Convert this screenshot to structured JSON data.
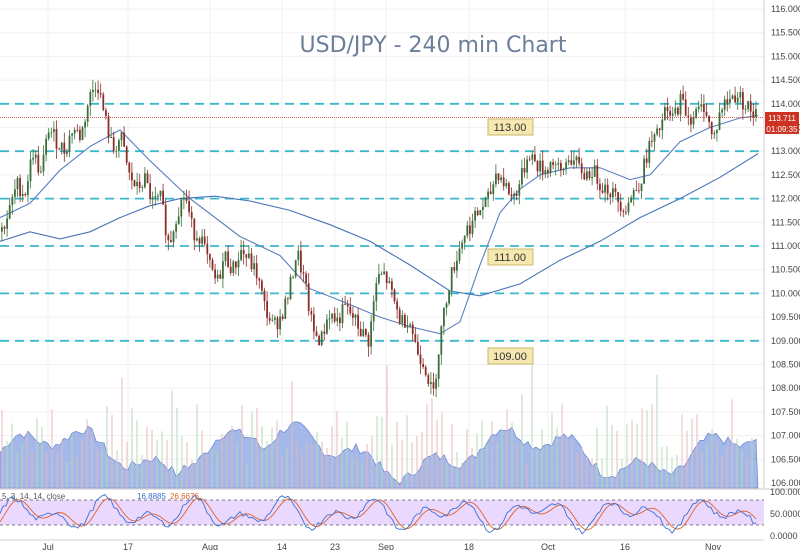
{
  "chart_data": {
    "type": "candlestick",
    "title": "USD/JPY - 240 min Chart",
    "y_axis": {
      "range": [
        105.9,
        116.1
      ],
      "ticks": [
        "116.000",
        "115.500",
        "115.000",
        "114.500",
        "114.000",
        "113.500",
        "113.000",
        "112.500",
        "112.000",
        "111.500",
        "111.000",
        "110.500",
        "110.000",
        "109.500",
        "109.000",
        "108.500",
        "108.000",
        "107.500",
        "107.000",
        "106.500",
        "106.000"
      ]
    },
    "x_axis": {
      "tick_labels": [
        "Jul",
        "17",
        "Aug",
        "14",
        "23",
        "Sep",
        "18",
        "Oct",
        "16",
        "Nov"
      ]
    },
    "price_path": [
      [
        0,
        111.3
      ],
      [
        8,
        111.7
      ],
      [
        16,
        112.3
      ],
      [
        24,
        112.1
      ],
      [
        32,
        113.0
      ],
      [
        40,
        112.5
      ],
      [
        48,
        113.5
      ],
      [
        56,
        113.2
      ],
      [
        64,
        113.0
      ],
      [
        72,
        113.5
      ],
      [
        80,
        113.3
      ],
      [
        88,
        114.1
      ],
      [
        96,
        114.5
      ],
      [
        104,
        113.7
      ],
      [
        112,
        113.0
      ],
      [
        120,
        113.3
      ],
      [
        128,
        112.5
      ],
      [
        136,
        112.2
      ],
      [
        144,
        112.4
      ],
      [
        152,
        111.9
      ],
      [
        160,
        112.0
      ],
      [
        168,
        111.0
      ],
      [
        176,
        111.7
      ],
      [
        184,
        112.1
      ],
      [
        192,
        111.3
      ],
      [
        200,
        111.2
      ],
      [
        208,
        110.6
      ],
      [
        216,
        110.2
      ],
      [
        224,
        110.8
      ],
      [
        232,
        110.5
      ],
      [
        240,
        110.9
      ],
      [
        248,
        110.7
      ],
      [
        256,
        110.4
      ],
      [
        264,
        109.7
      ],
      [
        272,
        109.3
      ],
      [
        280,
        109.5
      ],
      [
        288,
        110.0
      ],
      [
        296,
        110.9
      ],
      [
        304,
        110.2
      ],
      [
        312,
        109.2
      ],
      [
        320,
        109.0
      ],
      [
        328,
        109.6
      ],
      [
        336,
        109.4
      ],
      [
        344,
        109.7
      ],
      [
        352,
        109.5
      ],
      [
        360,
        109.2
      ],
      [
        368,
        109.0
      ],
      [
        376,
        110.3
      ],
      [
        384,
        110.4
      ],
      [
        392,
        109.9
      ],
      [
        400,
        109.4
      ],
      [
        408,
        109.5
      ],
      [
        416,
        108.8
      ],
      [
        424,
        108.5
      ],
      [
        432,
        107.8
      ],
      [
        440,
        109.2
      ],
      [
        448,
        110.2
      ],
      [
        456,
        110.8
      ],
      [
        464,
        111.3
      ],
      [
        472,
        111.5
      ],
      [
        480,
        111.8
      ],
      [
        488,
        112.0
      ],
      [
        496,
        112.6
      ],
      [
        504,
        112.3
      ],
      [
        512,
        112.0
      ],
      [
        520,
        112.4
      ],
      [
        528,
        113.0
      ],
      [
        536,
        112.7
      ],
      [
        544,
        112.6
      ],
      [
        552,
        112.8
      ],
      [
        560,
        112.5
      ],
      [
        568,
        112.9
      ],
      [
        576,
        112.7
      ],
      [
        584,
        112.5
      ],
      [
        592,
        112.6
      ],
      [
        600,
        112.3
      ],
      [
        608,
        112.2
      ],
      [
        616,
        112.0
      ],
      [
        624,
        111.8
      ],
      [
        632,
        112.1
      ],
      [
        640,
        112.4
      ],
      [
        648,
        113.1
      ],
      [
        656,
        113.3
      ],
      [
        664,
        113.8
      ],
      [
        672,
        113.7
      ],
      [
        680,
        114.1
      ],
      [
        688,
        113.7
      ],
      [
        696,
        113.8
      ],
      [
        704,
        114.0
      ],
      [
        712,
        113.2
      ],
      [
        720,
        113.9
      ],
      [
        728,
        114.1
      ],
      [
        736,
        114.2
      ],
      [
        744,
        114.0
      ],
      [
        752,
        113.8
      ],
      [
        758,
        113.711
      ]
    ],
    "moving_averages": [
      {
        "color": "#5b7ec4",
        "path": [
          [
            0,
            111.6
          ],
          [
            30,
            111.9
          ],
          [
            60,
            112.6
          ],
          [
            90,
            113.1
          ],
          [
            120,
            113.45
          ],
          [
            150,
            112.8
          ],
          [
            190,
            112.0
          ],
          [
            240,
            111.2
          ],
          [
            280,
            110.8
          ],
          [
            310,
            110.1
          ],
          [
            340,
            109.85
          ],
          [
            380,
            109.5
          ],
          [
            410,
            109.3
          ],
          [
            440,
            109.15
          ],
          [
            460,
            109.4
          ],
          [
            480,
            110.6
          ],
          [
            500,
            111.7
          ],
          [
            520,
            112.2
          ],
          [
            540,
            112.5
          ],
          [
            570,
            112.65
          ],
          [
            600,
            112.65
          ],
          [
            630,
            112.4
          ],
          [
            650,
            112.5
          ],
          [
            680,
            113.2
          ],
          [
            710,
            113.5
          ],
          [
            740,
            113.7
          ],
          [
            758,
            113.75
          ]
        ]
      },
      {
        "color": "#4a73b8",
        "path": [
          [
            0,
            111.1
          ],
          [
            30,
            111.3
          ],
          [
            60,
            111.15
          ],
          [
            90,
            111.3
          ],
          [
            120,
            111.6
          ],
          [
            150,
            111.85
          ],
          [
            180,
            112.0
          ],
          [
            215,
            112.05
          ],
          [
            250,
            111.95
          ],
          [
            290,
            111.75
          ],
          [
            330,
            111.45
          ],
          [
            370,
            111.1
          ],
          [
            410,
            110.6
          ],
          [
            450,
            110.05
          ],
          [
            480,
            109.95
          ],
          [
            520,
            110.2
          ],
          [
            560,
            110.7
          ],
          [
            600,
            111.1
          ],
          [
            640,
            111.6
          ],
          [
            680,
            112.0
          ],
          [
            720,
            112.45
          ],
          [
            758,
            112.95
          ]
        ]
      }
    ],
    "support_resistance_levels": [
      114.0,
      113.0,
      112.0,
      111.0,
      110.0,
      109.0
    ],
    "level_labels": [
      "113.00",
      "111.00",
      "109.00"
    ],
    "last_price": "113.711",
    "countdown": "01:09:35",
    "stochastic": {
      "header": "5, 3, 14, 14, close",
      "k_value": "16.8885",
      "d_value": "26.6676",
      "scale_ticks": [
        "100.0000",
        "50.0000",
        "0.0000"
      ],
      "band": [
        20,
        80
      ]
    },
    "colors": {
      "bull": "#3a6e3a",
      "bear": "#8b2e2a",
      "level_line": "#3ab8cc",
      "last_price": "#cc3322",
      "volume_area": "#7d9be0",
      "stoch_band": "#d9b8ff",
      "stoch_k": "#3f6fd1",
      "stoch_d": "#e0622d"
    }
  }
}
